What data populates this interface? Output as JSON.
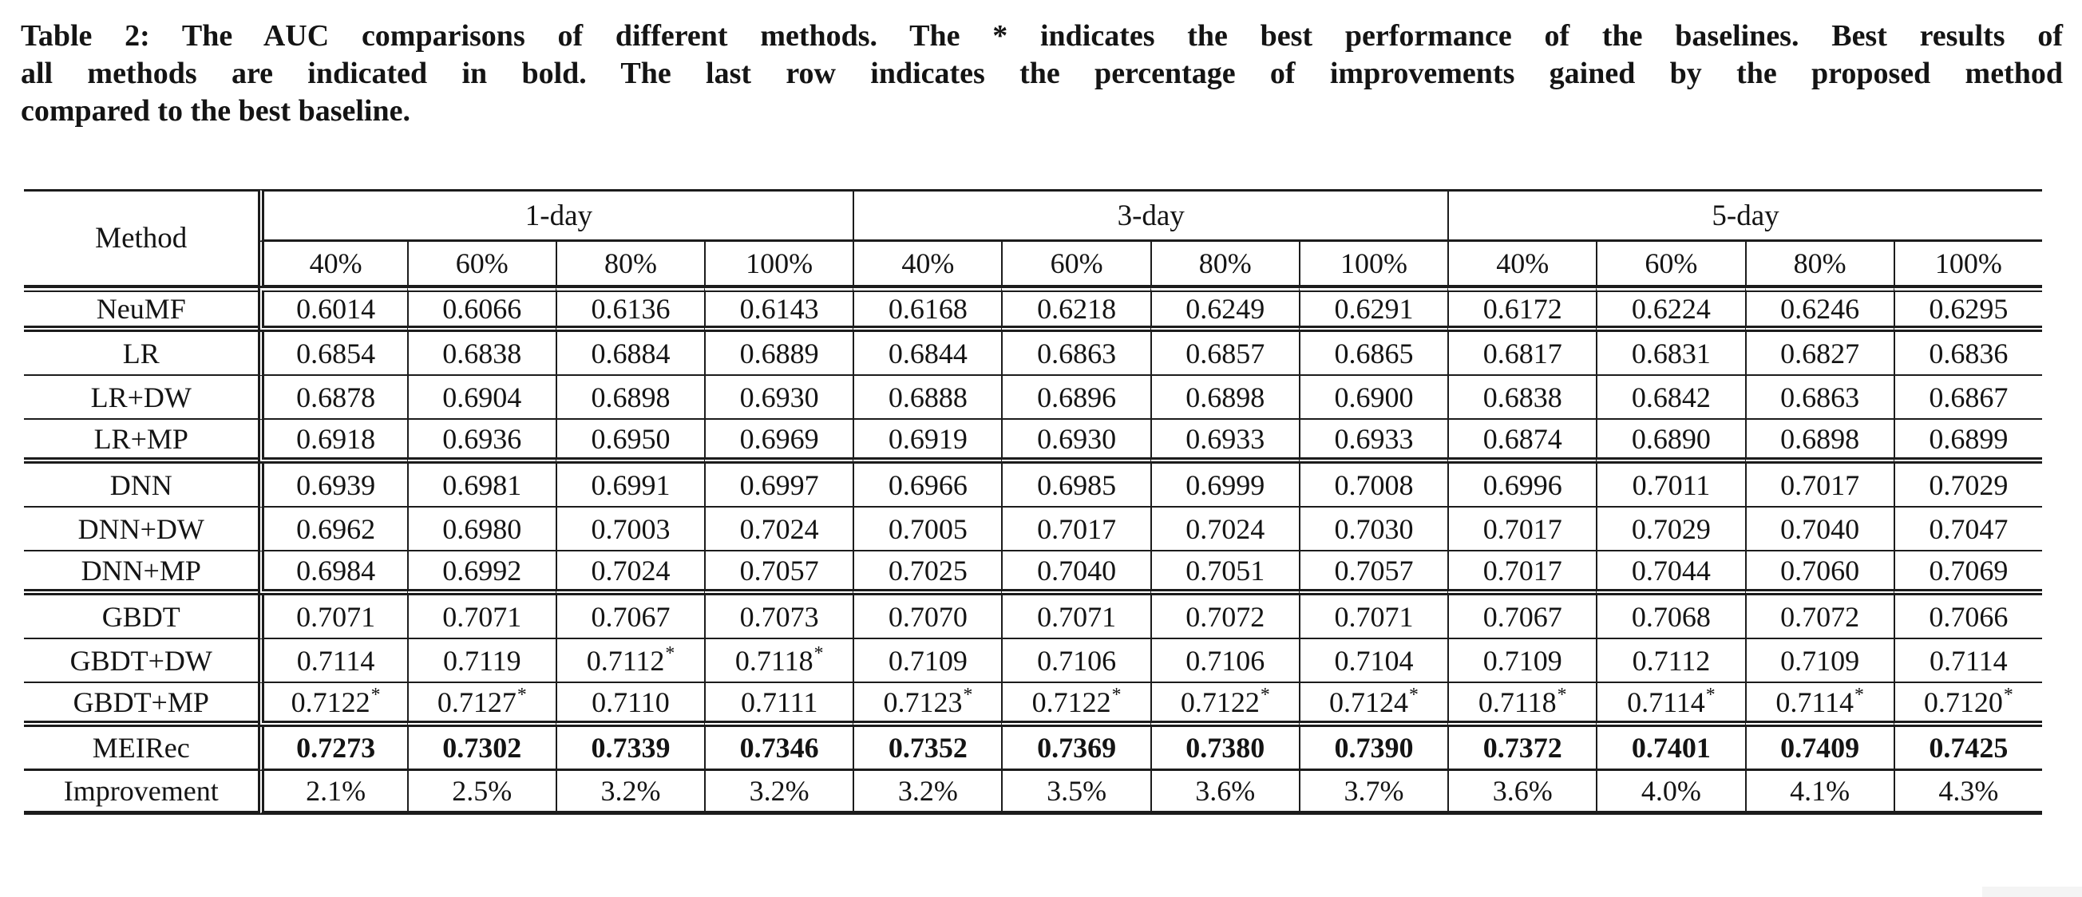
{
  "caption": {
    "label": "table-2-caption",
    "lines": [
      "Table 2: The AUC comparisons of different methods. The * indicates the best performance of the baselines. Best results of",
      "all methods are indicated in bold. The last row indicates the percentage of improvements gained by the proposed method",
      "compared to the best baseline."
    ]
  },
  "table": {
    "method_header": "Method",
    "day_groups": [
      "1-day",
      "3-day",
      "5-day"
    ],
    "ratio_headers": [
      "40%",
      "60%",
      "80%",
      "100%"
    ],
    "star_note": "* marks best baseline performance; shown as superscript after the value",
    "rows": [
      {
        "method": "NeuMF",
        "bold_values": false,
        "separator_after": "double",
        "values": [
          "0.6014",
          "0.6066",
          "0.6136",
          "0.6143",
          "0.6168",
          "0.6218",
          "0.6249",
          "0.6291",
          "0.6172",
          "0.6224",
          "0.6246",
          "0.6295"
        ]
      },
      {
        "method": "LR",
        "bold_values": false,
        "separator_after": "single",
        "values": [
          "0.6854",
          "0.6838",
          "0.6884",
          "0.6889",
          "0.6844",
          "0.6863",
          "0.6857",
          "0.6865",
          "0.6817",
          "0.6831",
          "0.6827",
          "0.6836"
        ]
      },
      {
        "method": "LR+DW",
        "bold_values": false,
        "separator_after": "single",
        "values": [
          "0.6878",
          "0.6904",
          "0.6898",
          "0.6930",
          "0.6888",
          "0.6896",
          "0.6898",
          "0.6900",
          "0.6838",
          "0.6842",
          "0.6863",
          "0.6867"
        ]
      },
      {
        "method": "LR+MP",
        "bold_values": false,
        "separator_after": "double",
        "values": [
          "0.6918",
          "0.6936",
          "0.6950",
          "0.6969",
          "0.6919",
          "0.6930",
          "0.6933",
          "0.6933",
          "0.6874",
          "0.6890",
          "0.6898",
          "0.6899"
        ]
      },
      {
        "method": "DNN",
        "bold_values": false,
        "separator_after": "single",
        "values": [
          "0.6939",
          "0.6981",
          "0.6991",
          "0.6997",
          "0.6966",
          "0.6985",
          "0.6999",
          "0.7008",
          "0.6996",
          "0.7011",
          "0.7017",
          "0.7029"
        ]
      },
      {
        "method": "DNN+DW",
        "bold_values": false,
        "separator_after": "single",
        "values": [
          "0.6962",
          "0.6980",
          "0.7003",
          "0.7024",
          "0.7005",
          "0.7017",
          "0.7024",
          "0.7030",
          "0.7017",
          "0.7029",
          "0.7040",
          "0.7047"
        ]
      },
      {
        "method": "DNN+MP",
        "bold_values": false,
        "separator_after": "double",
        "values": [
          "0.6984",
          "0.6992",
          "0.7024",
          "0.7057",
          "0.7025",
          "0.7040",
          "0.7051",
          "0.7057",
          "0.7017",
          "0.7044",
          "0.7060",
          "0.7069"
        ]
      },
      {
        "method": "GBDT",
        "bold_values": false,
        "separator_after": "single",
        "values": [
          "0.7071",
          "0.7071",
          "0.7067",
          "0.7073",
          "0.7070",
          "0.7071",
          "0.7072",
          "0.7071",
          "0.7067",
          "0.7068",
          "0.7072",
          "0.7066"
        ]
      },
      {
        "method": "GBDT+DW",
        "bold_values": false,
        "separator_after": "single",
        "values": [
          "0.7114",
          "0.7119",
          "0.7112*",
          "0.7118*",
          "0.7109",
          "0.7106",
          "0.7106",
          "0.7104",
          "0.7109",
          "0.7112",
          "0.7109",
          "0.7114"
        ]
      },
      {
        "method": "GBDT+MP",
        "bold_values": false,
        "separator_after": "double",
        "values": [
          "0.7122*",
          "0.7127*",
          "0.7110",
          "0.7111",
          "0.7123*",
          "0.7122*",
          "0.7122*",
          "0.7124*",
          "0.7118*",
          "0.7114*",
          "0.7114*",
          "0.7120*"
        ]
      },
      {
        "method": "MEIRec",
        "bold_values": true,
        "separator_after": "strong",
        "values": [
          "0.7273",
          "0.7302",
          "0.7339",
          "0.7346",
          "0.7352",
          "0.7369",
          "0.7380",
          "0.7390",
          "0.7372",
          "0.7401",
          "0.7409",
          "0.7425"
        ]
      },
      {
        "method": "Improvement",
        "bold_values": false,
        "separator_after": "bottom",
        "values": [
          "2.1%",
          "2.5%",
          "3.2%",
          "3.2%",
          "3.2%",
          "3.5%",
          "3.6%",
          "3.7%",
          "3.6%",
          "4.0%",
          "4.1%",
          "4.3%"
        ]
      }
    ]
  },
  "colors": {
    "background": "#ffffff",
    "text": "#141414",
    "rule": "#1c1c1c",
    "artifact_grey": "#f4f4f4"
  }
}
